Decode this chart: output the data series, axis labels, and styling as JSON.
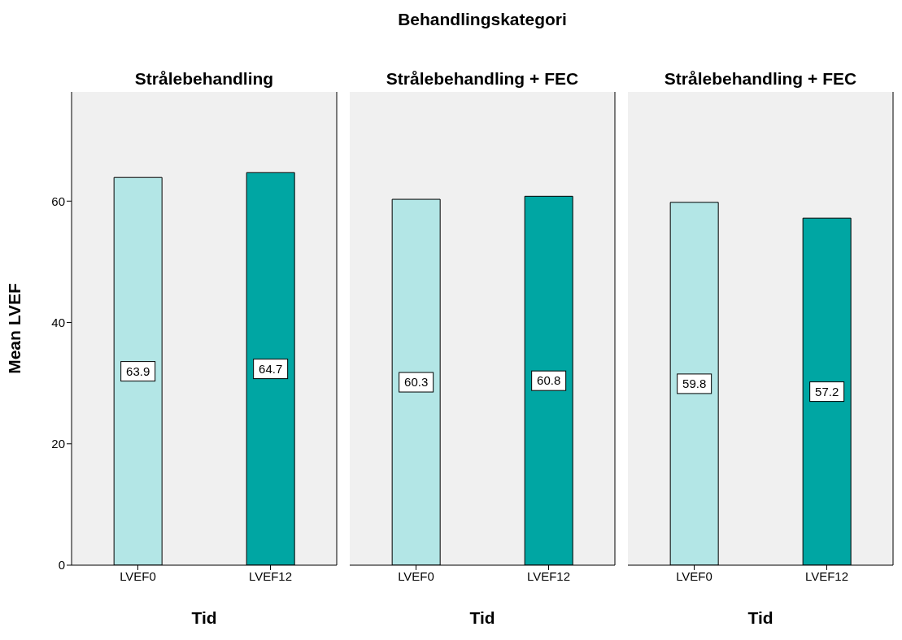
{
  "chart_data": [
    {
      "type": "bar",
      "subtitle": "Strålebehandling",
      "xlabel": "Tid",
      "ylabel": "Mean LVEF",
      "categories": [
        "LVEF0",
        "LVEF12"
      ],
      "values": [
        63.9,
        64.7
      ],
      "colors": [
        "#b3e6e6",
        "#00a6a3"
      ],
      "ylim": [
        0,
        78
      ],
      "yticks": [
        0,
        20,
        40,
        60
      ],
      "data_labels": true
    },
    {
      "type": "bar",
      "title": "Behandlingskategori",
      "subtitle": "Strålebehandling + FEC",
      "xlabel": "Tid",
      "categories": [
        "LVEF0",
        "LVEF12"
      ],
      "values": [
        60.3,
        60.8
      ],
      "colors": [
        "#b3e6e6",
        "#00a6a3"
      ],
      "ylim": [
        0,
        78
      ],
      "yticks": [
        0,
        20,
        40,
        60
      ],
      "data_labels": true,
      "tick_labels": "x"
    },
    {
      "type": "bar",
      "subtitle": "Strålebehandling + FEC",
      "xlabel": "Tid",
      "categories": [
        "LVEF0",
        "LVEF12"
      ],
      "values": [
        59.8,
        57.2
      ],
      "colors": [
        "#b3e6e6",
        "#00a6a3"
      ],
      "ylim": [
        0,
        78
      ],
      "yticks": [
        0,
        20,
        40,
        60
      ],
      "data_labels": true,
      "tick_labels": "x"
    }
  ]
}
